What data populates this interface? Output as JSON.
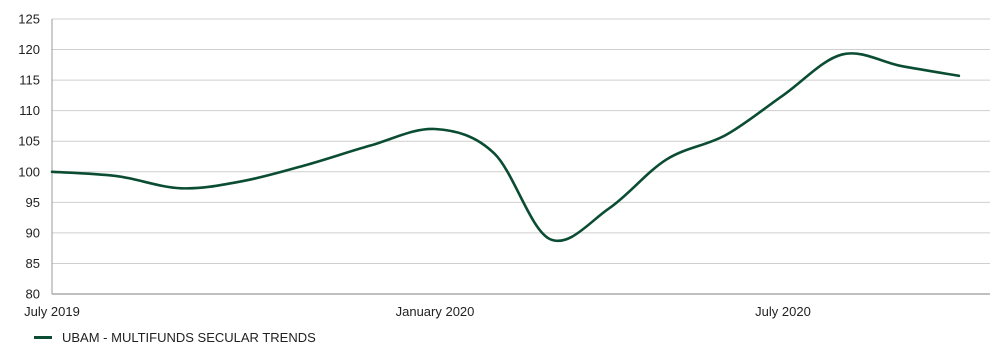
{
  "chart_data": {
    "type": "line",
    "title": "",
    "xlabel": "",
    "ylabel": "",
    "x_ticks": [
      "July 2019",
      "January 2020",
      "July 2020"
    ],
    "ylim": [
      80,
      125
    ],
    "y_ticks": [
      80,
      85,
      90,
      95,
      100,
      105,
      110,
      115,
      120,
      125
    ],
    "grid": "horizontal",
    "legend_position": "bottom-left",
    "series": [
      {
        "name": "UBAM - MULTIFUNDS SECULAR TRENDS",
        "color": "#0b4d33",
        "x": [
          "2019-07-01",
          "2019-08-01",
          "2019-09-01",
          "2019-10-01",
          "2019-11-01",
          "2019-12-01",
          "2020-01-01",
          "2020-02-01",
          "2020-03-01",
          "2020-04-01",
          "2020-05-01",
          "2020-06-01",
          "2020-07-01",
          "2020-08-01",
          "2020-09-01",
          "2020-10-01"
        ],
        "values": [
          100,
          99.3,
          97.3,
          98.5,
          101.2,
          104.3,
          107.0,
          103.0,
          89.0,
          94.0,
          102.0,
          106.0,
          112.5,
          119.2,
          117.3,
          115.7
        ]
      }
    ]
  }
}
